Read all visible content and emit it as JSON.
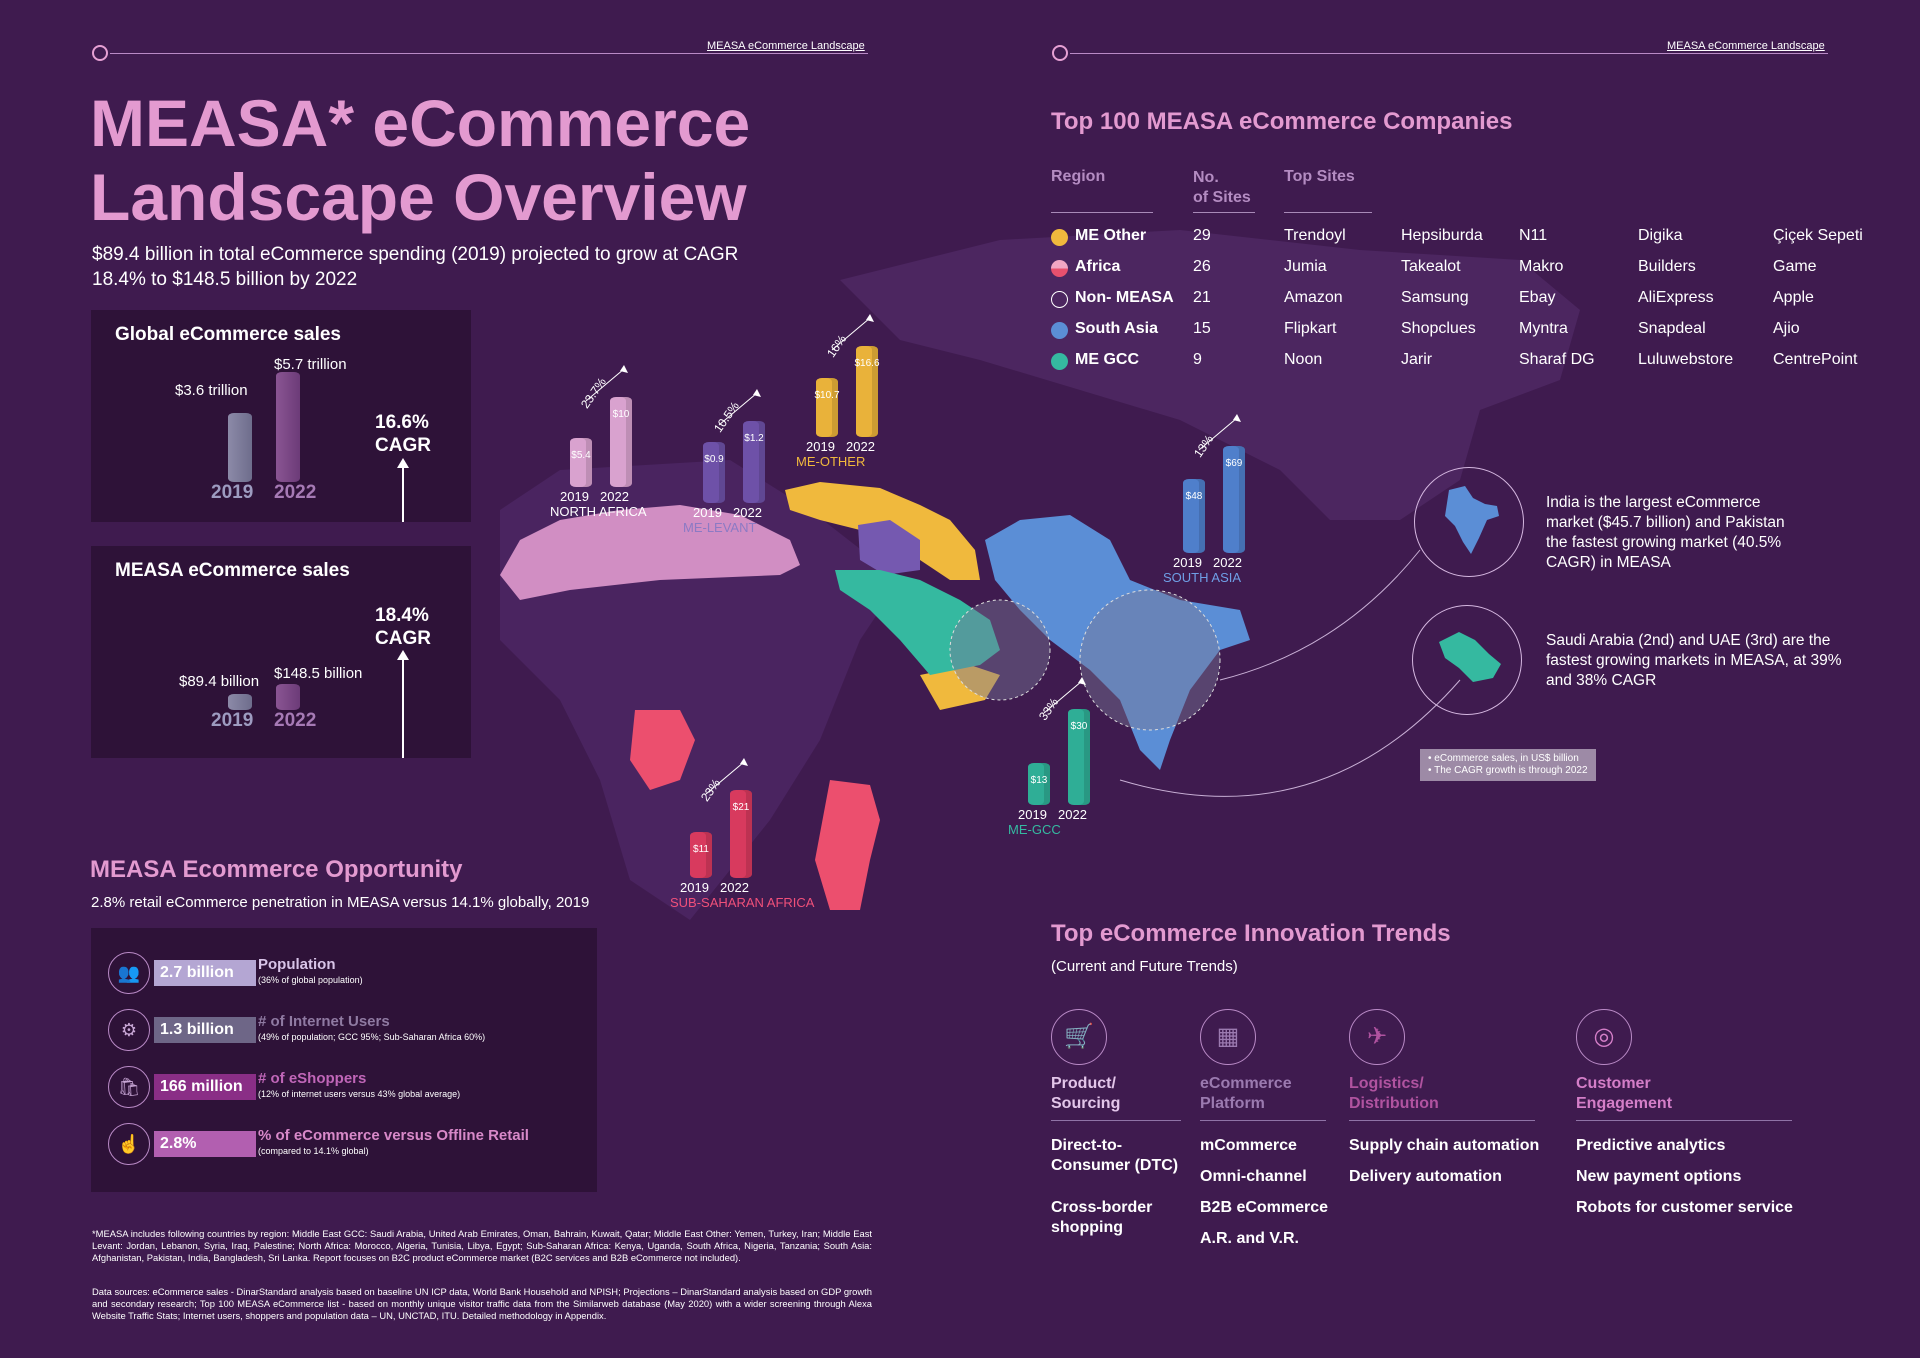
{
  "header_left": "MEASA eCommerce Landscape",
  "header_right": "MEASA eCommerce Landscape",
  "title_line1": "MEASA* eCommerce",
  "title_line2": "Landscape Overview",
  "subtitle": "$89.4 billion in total eCommerce spending (2019) projected to grow at CAGR 18.4% to $148.5 billion by 2022",
  "global_panel": {
    "title": "Global eCommerce sales",
    "label_2019": "$3.6 trillion",
    "label_2022": "$5.7 trillion",
    "year_2019": "2019",
    "year_2022": "2022",
    "cagr_value": "16.6%",
    "cagr_word": "CAGR",
    "value_2019": 3.6,
    "value_2022": 5.7
  },
  "measa_panel": {
    "title": "MEASA eCommerce sales",
    "label_2019": "$89.4 billion",
    "label_2022": "$148.5 billion",
    "year_2019": "2019",
    "year_2022": "2022",
    "cagr_value": "18.4%",
    "cagr_word": "CAGR",
    "value_2019": 89.4,
    "value_2022": 148.5
  },
  "opportunity": {
    "title": "MEASA Ecommerce Opportunity",
    "subtitle": "2.8% retail eCommerce penetration in MEASA versus 14.1% globally, 2019",
    "rows": [
      {
        "value": "2.7 billion",
        "label": "Population",
        "note": "(36% of global population)",
        "icon": "people-icon",
        "color": "#b4a6d3",
        "label_color": "#d8c4e8"
      },
      {
        "value": "1.3 billion",
        "label": "# of Internet Users",
        "note": "(49% of population; GCC 95%; Sub-Saharan Africa 60%)",
        "icon": "globe-icon",
        "color": "#6e6687",
        "label_color": "#8f7aa2"
      },
      {
        "value": "166 million",
        "label": "# of eShoppers",
        "note": "(12% of internet users versus 43% global average)",
        "icon": "shopping-icon",
        "color": "#8a2e86",
        "label_color": "#c066b8"
      },
      {
        "value": "2.8%",
        "label": "% of eCommerce versus Offline Retail",
        "note": "(compared to 14.1% global)",
        "icon": "hand-icon",
        "color": "#b25fb0",
        "label_color": "#d889c9"
      }
    ]
  },
  "footnote1": "*MEASA includes following countries by region:  Middle East GCC: Saudi Arabia, United Arab Emirates, Oman, Bahrain, Kuwait, Qatar; Middle East Other: Yemen, Turkey, Iran; Middle East Levant: Jordan, Lebanon, Syria, Iraq, Palestine; North Africa: Morocco, Algeria, Tunisia, Libya, Egypt; Sub-Saharan Africa: Kenya, Uganda, South Africa, Nigeria, Tanzania; South Asia: Afghanistan, Pakistan, India, Bangladesh, Sri Lanka. Report focuses on B2C product eCommerce market (B2C services and B2B eCommerce not included).",
  "footnote2": "Data sources: eCommerce sales - DinarStandard analysis based on baseline UN ICP data, World Bank Household and NPISH;  Projections – DinarStandard analysis based on GDP growth and secondary research; Top 100 MEASA eCommerce list - based on monthly unique visitor traffic data from the Similarweb database (May 2020) with a wider screening through Alexa Website Traffic Stats; Internet users, shoppers and population data – UN, UNCTAD, ITU. Detailed methodology in Appendix.",
  "top100": {
    "title": "Top 100 MEASA eCommerce Companies",
    "col_region": "Region",
    "col_sites_1": "No.",
    "col_sites_2": "of Sites",
    "col_top": "Top Sites",
    "rows": [
      {
        "region": "ME Other",
        "count": "29",
        "sites": [
          "Trendoyl",
          "Hepsiburda",
          "N11",
          "Digika",
          "Çiçek Sepeti"
        ],
        "dot": "#f0b93d",
        "dot_style": "solid"
      },
      {
        "region": "Africa",
        "count": "26",
        "sites": [
          "Jumia",
          "Takealot",
          "Makro",
          "Builders",
          "Game"
        ],
        "dot": "#e8506e",
        "dot_style": "split"
      },
      {
        "region": "Non- MEASA",
        "count": "21",
        "sites": [
          "Amazon",
          "Samsung",
          "Ebay",
          "AliExpress",
          "Apple"
        ],
        "dot": "#3f1b4f",
        "dot_style": "outline"
      },
      {
        "region": "South Asia",
        "count": "15",
        "sites": [
          "Flipkart",
          "Shopclues",
          "Myntra",
          "Snapdeal",
          "Ajio"
        ],
        "dot": "#5b8ed6",
        "dot_style": "solid"
      },
      {
        "region": "ME GCC",
        "count": "9",
        "sites": [
          "Noon",
          "Jarir",
          "Sharaf DG",
          "Luluwebstore",
          "CentrePoint"
        ],
        "dot": "#35b9a0",
        "dot_style": "solid"
      }
    ]
  },
  "map_bars": [
    {
      "region": "NORTH AFRICA",
      "v2019": "$5.4",
      "v2022": "$10",
      "n2019": 5.4,
      "n2022": 10,
      "pct": "23.7%",
      "color": "#d9a2cf",
      "label_color": "#ffffff",
      "y2019": "2019",
      "y2022": "2022"
    },
    {
      "region": "ME-LEVANT",
      "v2019": "$0.9",
      "v2022": "$1.2",
      "n2019": 0.9,
      "n2022": 1.2,
      "pct": "10.5%",
      "color": "#6e51a8",
      "label_color": "#8c7ac4",
      "y2019": "2019",
      "y2022": "2022"
    },
    {
      "region": "ME-OTHER",
      "v2019": "$10.7",
      "v2022": "$16.6",
      "n2019": 10.7,
      "n2022": 16.6,
      "pct": "16%",
      "color": "#e9b23a",
      "label_color": "#f0b93d",
      "y2019": "2019",
      "y2022": "2022"
    },
    {
      "region": "SOUTH ASIA",
      "v2019": "$48",
      "v2022": "$69",
      "n2019": 48,
      "n2022": 69,
      "pct": "13%",
      "color": "#4f7fcb",
      "label_color": "#6f9fe6",
      "y2019": "2019",
      "y2022": "2022"
    },
    {
      "region": "ME-GCC",
      "v2019": "$13",
      "v2022": "$30",
      "n2019": 13,
      "n2022": 30,
      "pct": "33%",
      "color": "#2fae96",
      "label_color": "#35b9a0",
      "y2019": "2019",
      "y2022": "2022"
    },
    {
      "region": "SUB-SAHARAN AFRICA",
      "v2019": "$11",
      "v2022": "$21",
      "n2019": 11,
      "n2022": 21,
      "pct": "23%",
      "color": "#d83a5e",
      "label_color": "#f0507a",
      "y2019": "2019",
      "y2022": "2022"
    }
  ],
  "callout_india": "India is the largest eCommerce market ($45.7 billion) and Pakistan the fastest growing market (40.5% CAGR) in MEASA",
  "callout_saudi": "Saudi Arabia (2nd) and UAE (3rd) are the fastest growing markets in MEASA, at 39% and 38% CAGR",
  "map_note_1": "• eCommerce sales, in US$ billion",
  "map_note_2": "• The CAGR growth is through 2022",
  "trends": {
    "title": "Top eCommerce Innovation Trends",
    "subtitle": "(Current and Future Trends)",
    "columns": [
      {
        "head1": "Product/",
        "head2": "Sourcing",
        "icon": "cart-icon",
        "color": "#e3c6ea",
        "items": [
          "Direct-to-Consumer (DTC)",
          "Cross-border shopping"
        ]
      },
      {
        "head1": "eCommerce",
        "head2": "Platform",
        "icon": "tablet-icon",
        "color": "#9b7ab0",
        "items": [
          "mCommerce",
          "Omni-channel",
          "B2B eCommerce",
          "A.R. and V.R."
        ]
      },
      {
        "head1": "Logistics/",
        "head2": "Distribution",
        "icon": "truck-icon",
        "color": "#b053a0",
        "items": [
          "Supply chain automation",
          "Delivery automation"
        ]
      },
      {
        "head1": "Customer",
        "head2": "Engagement",
        "icon": "target-icon",
        "color": "#d47ec8",
        "items": [
          "Predictive analytics",
          "New payment options",
          "Robots for customer service"
        ]
      }
    ]
  }
}
